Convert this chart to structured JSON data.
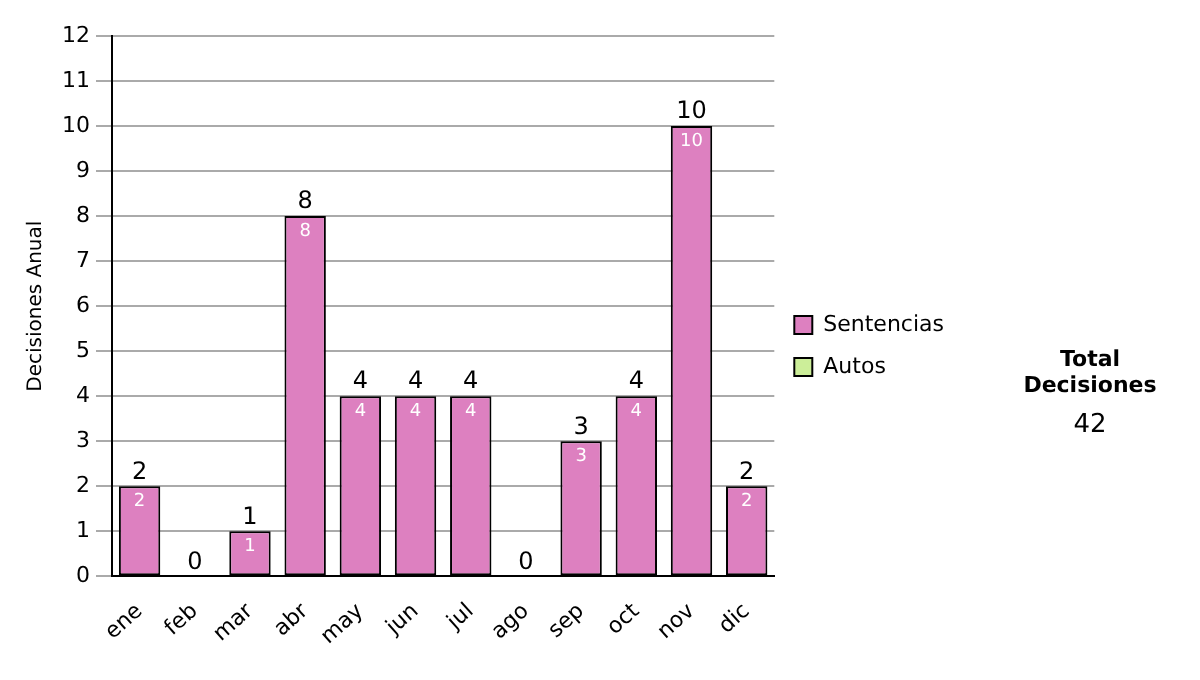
{
  "chart_data": {
    "type": "bar",
    "ylabel": "Decisiones Anual",
    "categories": [
      "ene",
      "feb",
      "mar",
      "abr",
      "may",
      "jun",
      "jul",
      "ago",
      "sep",
      "oct",
      "nov",
      "dic"
    ],
    "series": [
      {
        "name": "Sentencias",
        "color": "#dd80c0",
        "values": [
          2,
          0,
          1,
          8,
          4,
          4,
          4,
          0,
          3,
          4,
          10,
          2
        ],
        "value_labels": [
          "2",
          null,
          "1",
          "8",
          "4",
          "4",
          "4",
          null,
          "3",
          "4",
          "10",
          "2"
        ]
      },
      {
        "name": "Autos",
        "color": "#ccee99",
        "values": [
          0,
          0,
          0,
          0,
          0,
          0,
          0,
          0,
          0,
          0,
          0,
          0
        ]
      }
    ],
    "stacked": true,
    "totals": [
      "2",
      "0",
      "1",
      "8",
      "4",
      "4",
      "4",
      "0",
      "3",
      "4",
      "10",
      "2"
    ],
    "ylim": [
      0,
      12
    ],
    "yticks": [
      0,
      1,
      2,
      3,
      4,
      5,
      6,
      7,
      8,
      9,
      10,
      11,
      12
    ],
    "grid": "y",
    "legend": "right",
    "annotations": [
      "Total Decisiones",
      "42"
    ]
  }
}
